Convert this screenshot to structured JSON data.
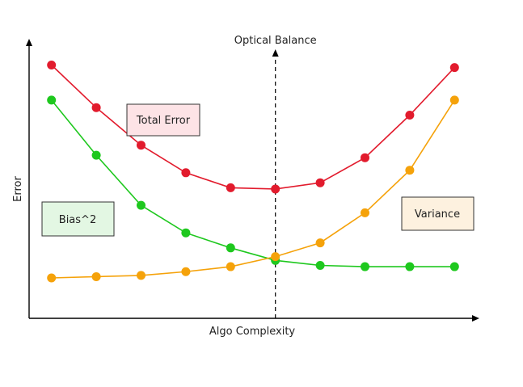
{
  "chart_data": {
    "type": "line",
    "xlabel": "Algo Complexity",
    "ylabel": "Error",
    "x": [
      1,
      2,
      3,
      4,
      5,
      6,
      7,
      8,
      9,
      10
    ],
    "reference_line": {
      "x": 6,
      "label": "Optical Balance"
    },
    "series": [
      {
        "name": "Total Error",
        "color": "#e21b2d",
        "values": [
          0.95,
          0.78,
          0.63,
          0.52,
          0.46,
          0.455,
          0.48,
          0.58,
          0.75,
          0.94
        ]
      },
      {
        "name": "Bias^2",
        "color": "#1ec81e",
        "values": [
          0.81,
          0.59,
          0.39,
          0.28,
          0.22,
          0.17,
          0.15,
          0.145,
          0.145,
          0.145
        ]
      },
      {
        "name": "Variance",
        "color": "#f5a20a",
        "values": [
          0.1,
          0.105,
          0.11,
          0.125,
          0.145,
          0.185,
          0.24,
          0.36,
          0.53,
          0.81
        ]
      }
    ],
    "legend_boxes": [
      {
        "label": "Total Error",
        "fill": "#fde3e6"
      },
      {
        "label": "Bias^2",
        "fill": "#e3f7e3"
      },
      {
        "label": "Variance",
        "fill": "#fdf1df"
      }
    ],
    "xlim": [
      0.5,
      10.5
    ],
    "ylim": [
      0,
      1
    ]
  }
}
